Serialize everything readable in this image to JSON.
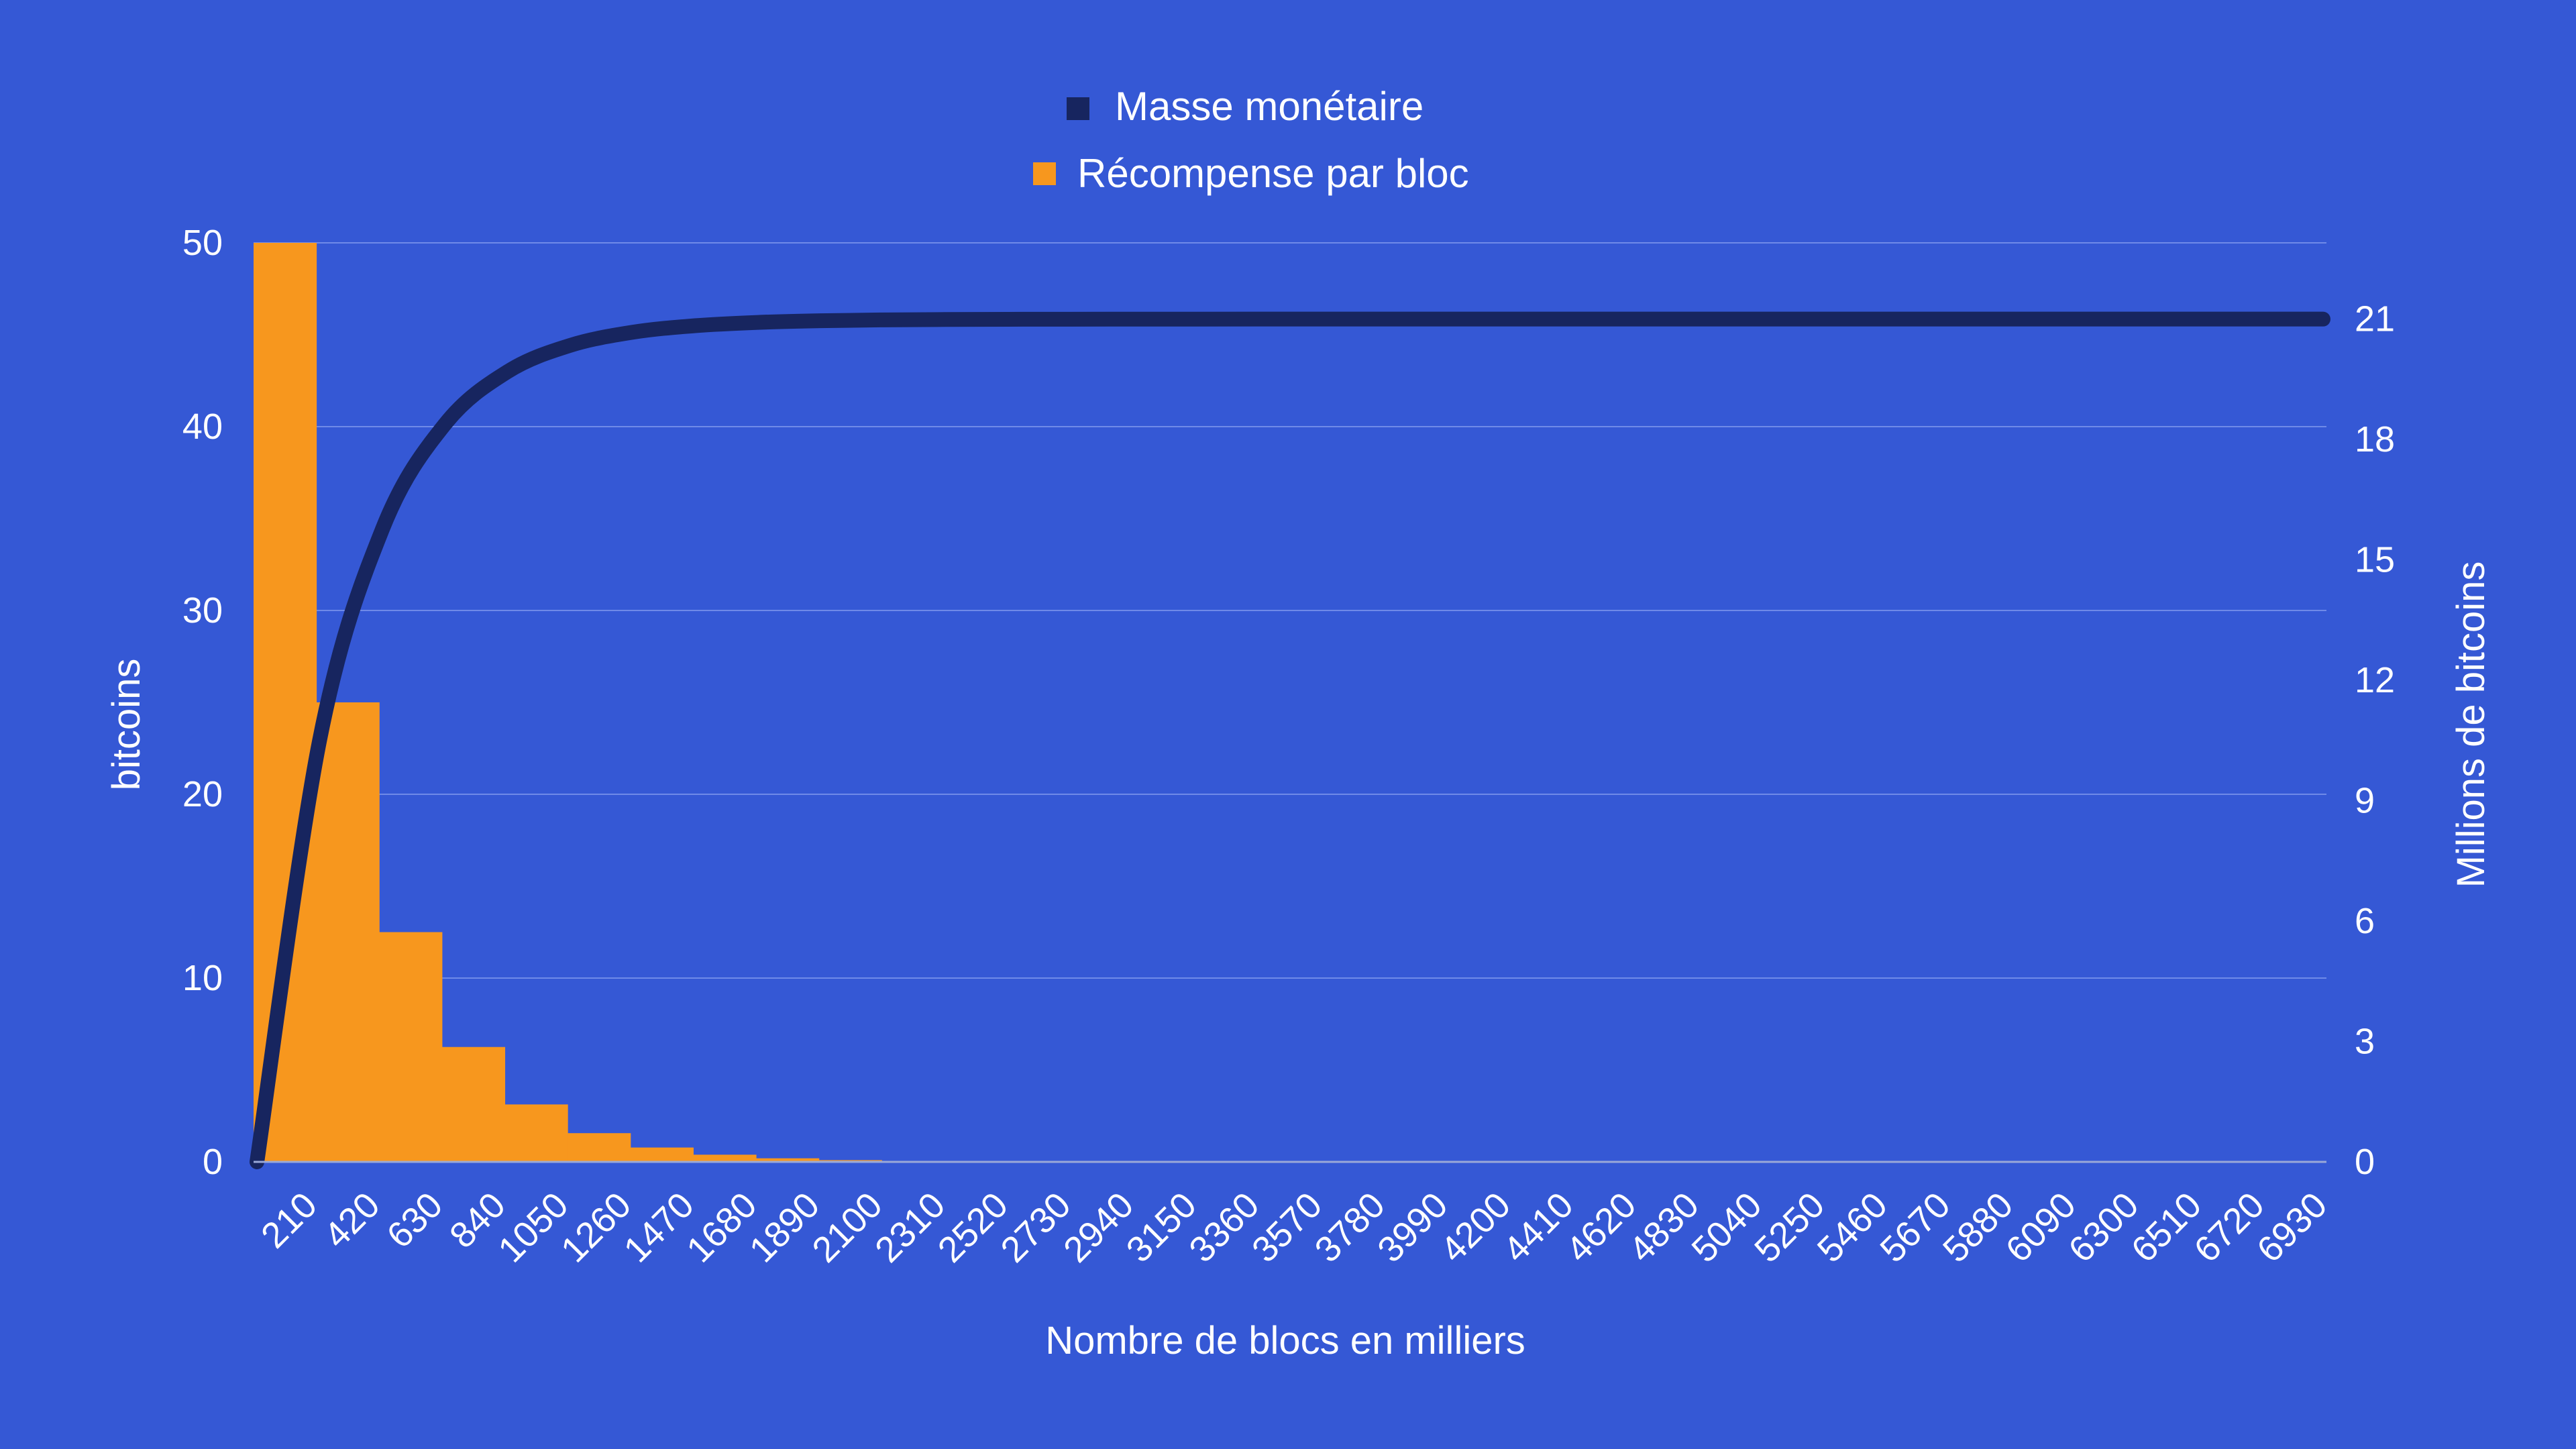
{
  "colors": {
    "background": "#3558d5",
    "grid": "#6f8ae8",
    "bar": "#f7971e",
    "line": "#17255f",
    "text": "#ffffff"
  },
  "chart_data": {
    "type": "bar+line",
    "legend": {
      "placement": "top-center",
      "items": [
        {
          "label": "Masse monétaire",
          "color": "#17255f",
          "series": "line"
        },
        {
          "label": "Récompense par bloc",
          "color": "#f7971e",
          "series": "bar"
        }
      ]
    },
    "xlabel": "Nombre de blocs en milliers",
    "ylabel_left": "bitcoins",
    "ylabel_right": "Millions de bitcoins",
    "ylim_left": [
      0,
      50
    ],
    "ylim_right": [
      0,
      22.9
    ],
    "yticks_left": [
      0,
      10,
      20,
      30,
      40,
      50
    ],
    "yticks_right": [
      0,
      3,
      6,
      9,
      12,
      15,
      18,
      21
    ],
    "grid": true,
    "categories": [
      "210",
      "420",
      "630",
      "840",
      "1050",
      "1260",
      "1470",
      "1680",
      "1890",
      "2100",
      "2310",
      "2520",
      "2730",
      "2940",
      "3150",
      "3360",
      "3570",
      "3780",
      "3990",
      "4200",
      "4410",
      "4620",
      "4830",
      "5040",
      "5250",
      "5460",
      "5670",
      "5880",
      "6090",
      "6300",
      "6510",
      "6720",
      "6930"
    ],
    "bar_series": {
      "name": "Récompense par bloc",
      "values": [
        50,
        25,
        12.5,
        6.25,
        3.125,
        1.5625,
        0.78125,
        0.390625,
        0.1953125,
        0.09765625,
        0.048828125,
        0.0244140625,
        0.01220703125,
        0.006103515625,
        0.0030517578125,
        0.00152587890625,
        0.000762939453125,
        0.0003814697265625,
        0.00019073486328125,
        9.5367431640625e-05,
        4.76837158203125e-05,
        2.384185791015625e-05,
        1.1920928955078125e-05,
        5.960464477539063e-06,
        2.980232238769531e-06,
        1.490116119384766e-06,
        7.45058059692383e-07,
        3.72529029846191e-07,
        1.86264514923096e-07,
        9.3132257461548e-08,
        4.6566128730774e-08,
        2.3283064365387e-08,
        1.1641532182693e-08
      ]
    },
    "line_series": {
      "name": "Masse monétaire",
      "x": [
        0,
        210,
        420,
        630,
        840,
        1050,
        1260,
        1470,
        1680,
        1890,
        2100,
        2310,
        2520,
        2730,
        2940,
        3150,
        3360,
        3570,
        3780,
        3990,
        4200,
        4410,
        4620,
        4830,
        5040,
        5250,
        5460,
        5670,
        5880,
        6090,
        6300,
        6510,
        6720,
        6930
      ],
      "values": [
        0,
        10.5,
        15.75,
        18.375,
        19.6875,
        20.34375,
        20.671875,
        20.8359375,
        20.91796875,
        20.958984375,
        20.9794921875,
        20.98974609375,
        20.994873046875,
        20.9974365234375,
        20.99871826171875,
        20.999359130859375,
        20.999679565429688,
        20.999839782714844,
        20.999919891357422,
        20.99995994567871,
        20.999979972839355,
        20.999989986419678,
        20.99999499320984,
        20.99999749660492,
        20.99999874830246,
        20.99999937415123,
        20.999999687075615,
        20.999999843537807,
        20.999999921768904,
        20.999999960884452,
        20.999999980442226,
        20.999999990221113,
        20.999999995110556,
        20.99999999755528
      ]
    }
  }
}
